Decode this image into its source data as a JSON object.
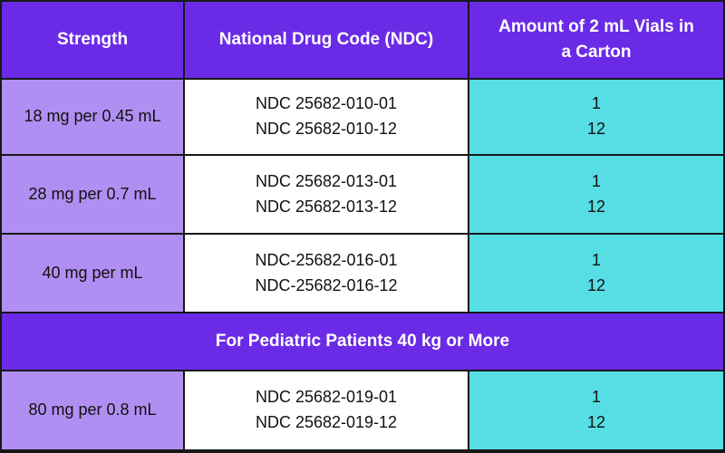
{
  "colors": {
    "purple": "#6b2be6",
    "light-purple": "#b18ff2",
    "cyan": "#57dee4",
    "border": "#171717",
    "header-text": "#ffffff",
    "body-text": "#111111"
  },
  "table": {
    "headers": [
      "Strength",
      "National Drug Code (NDC)",
      "Amount of 2 mL Vials in a Carton"
    ],
    "rows": [
      {
        "strength": "18 mg per 0.45 mL",
        "ndc_line1": "NDC 25682-010-01",
        "ndc_line2": "NDC 25682-010-12",
        "vials_line1": "1",
        "vials_line2": "12"
      },
      {
        "strength": "28 mg per 0.7 mL",
        "ndc_line1": "NDC 25682-013-01",
        "ndc_line2": "NDC 25682-013-12",
        "vials_line1": "1",
        "vials_line2": "12"
      },
      {
        "strength": "40 mg per mL",
        "ndc_line1": "NDC-25682-016-01",
        "ndc_line2": "NDC-25682-016-12",
        "vials_line1": "1",
        "vials_line2": "12"
      },
      {
        "strength": "80 mg per 0.8 mL",
        "ndc_line1": "NDC 25682-019-01",
        "ndc_line2": "NDC 25682-019-12",
        "vials_line1": "1",
        "vials_line2": "12"
      }
    ],
    "banner": "For Pediatric Patients 40 kg or More"
  }
}
